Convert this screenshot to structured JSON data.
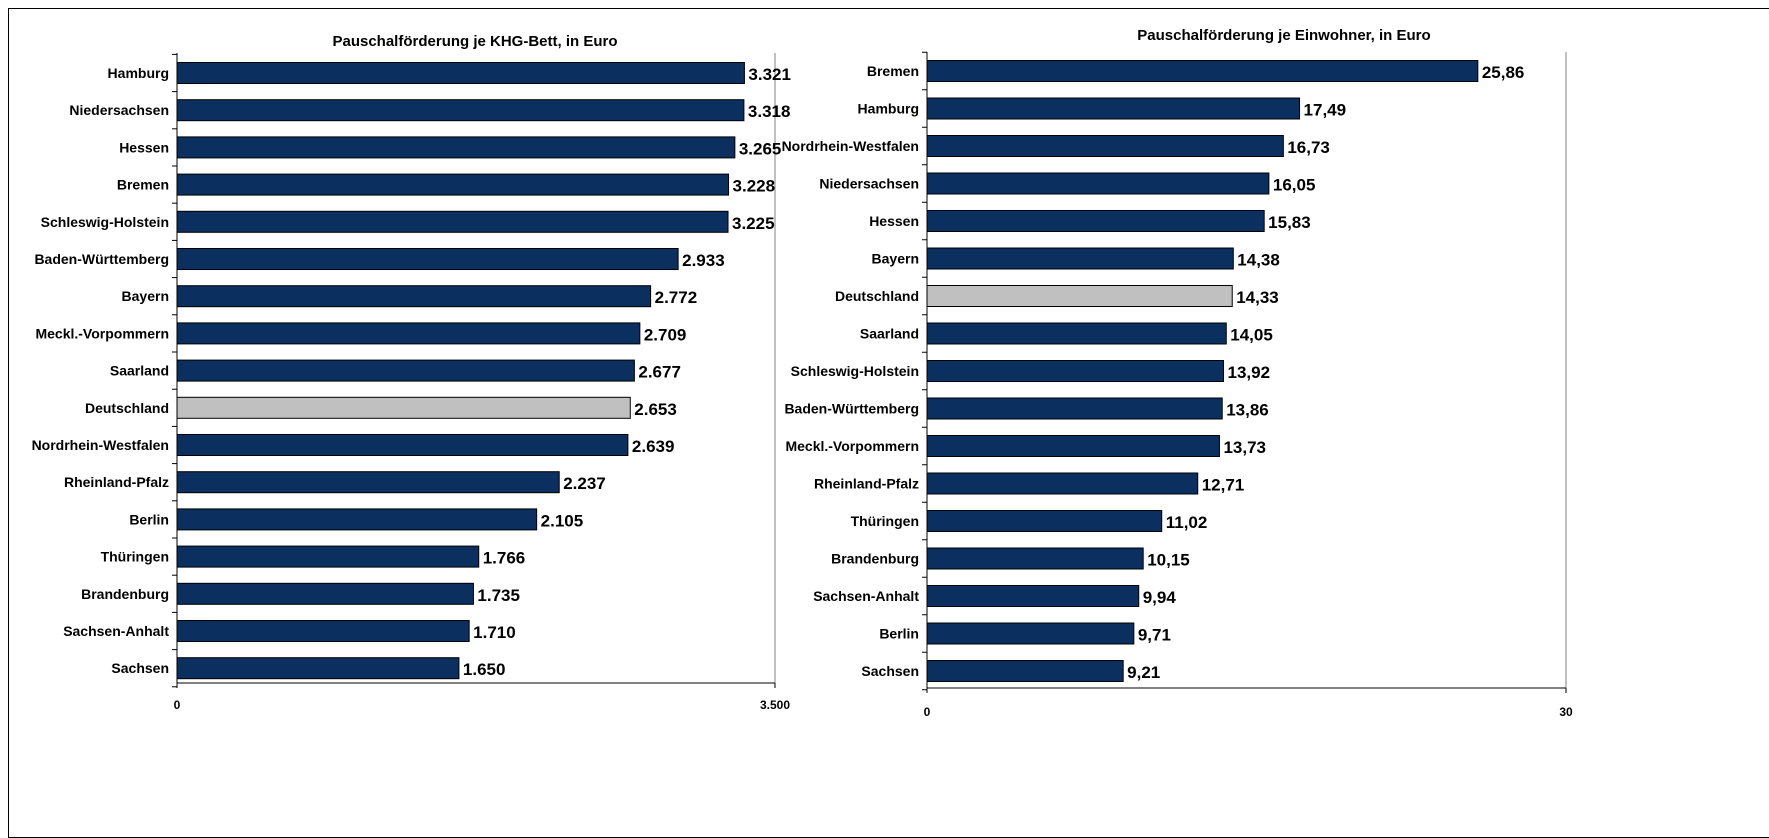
{
  "colors": {
    "bar": "#0B2F5E",
    "highlight": "#C0C0C0",
    "axis": "#000000"
  },
  "chart_data": [
    {
      "type": "bar",
      "orientation": "horizontal",
      "title": "Pauschalförderung je KHG-Bett, in Euro",
      "categories": [
        "Hamburg",
        "Niedersachsen",
        "Hessen",
        "Bremen",
        "Schleswig-Holstein",
        "Baden-Württemberg",
        "Bayern",
        "Meckl.-Vorpommern",
        "Saarland",
        "Deutschland",
        "Nordrhein-Westfalen",
        "Rheinland-Pfalz",
        "Berlin",
        "Thüringen",
        "Brandenburg",
        "Sachsen-Anhalt",
        "Sachsen"
      ],
      "values": [
        3321,
        3318,
        3265,
        3228,
        3225,
        2933,
        2772,
        2709,
        2677,
        2653,
        2639,
        2237,
        2105,
        1766,
        1735,
        1710,
        1650
      ],
      "value_labels": [
        "3.321",
        "3.318",
        "3.265",
        "3.228",
        "3.225",
        "2.933",
        "2.772",
        "2.709",
        "2.677",
        "2.653",
        "2.639",
        "2.237",
        "2.105",
        "1.766",
        "1.735",
        "1.710",
        "1.650"
      ],
      "highlight_category": "Deutschland",
      "xlim": [
        0,
        3500
      ],
      "tick_labels": [
        "0",
        "3.500"
      ]
    },
    {
      "type": "bar",
      "orientation": "horizontal",
      "title": "Pauschalförderung je Einwohner, in Euro",
      "categories": [
        "Bremen",
        "Hamburg",
        "Nordrhein-Westfalen",
        "Niedersachsen",
        "Hessen",
        "Bayern",
        "Deutschland",
        "Saarland",
        "Schleswig-Holstein",
        "Baden-Württemberg",
        "Meckl.-Vorpommern",
        "Rheinland-Pfalz",
        "Thüringen",
        "Brandenburg",
        "Sachsen-Anhalt",
        "Berlin",
        "Sachsen"
      ],
      "values": [
        25.86,
        17.49,
        16.73,
        16.05,
        15.83,
        14.38,
        14.33,
        14.05,
        13.92,
        13.86,
        13.73,
        12.71,
        11.02,
        10.15,
        9.94,
        9.71,
        9.21
      ],
      "value_labels": [
        "25,86",
        "17,49",
        "16,73",
        "16,05",
        "15,83",
        "14,38",
        "14,33",
        "14,05",
        "13,92",
        "13,86",
        "13,73",
        "12,71",
        "11,02",
        "10,15",
        "9,94",
        "9,71",
        "9,21"
      ],
      "highlight_category": "Deutschland",
      "xlim": [
        0,
        30
      ],
      "tick_labels": [
        "0",
        "30"
      ]
    }
  ]
}
